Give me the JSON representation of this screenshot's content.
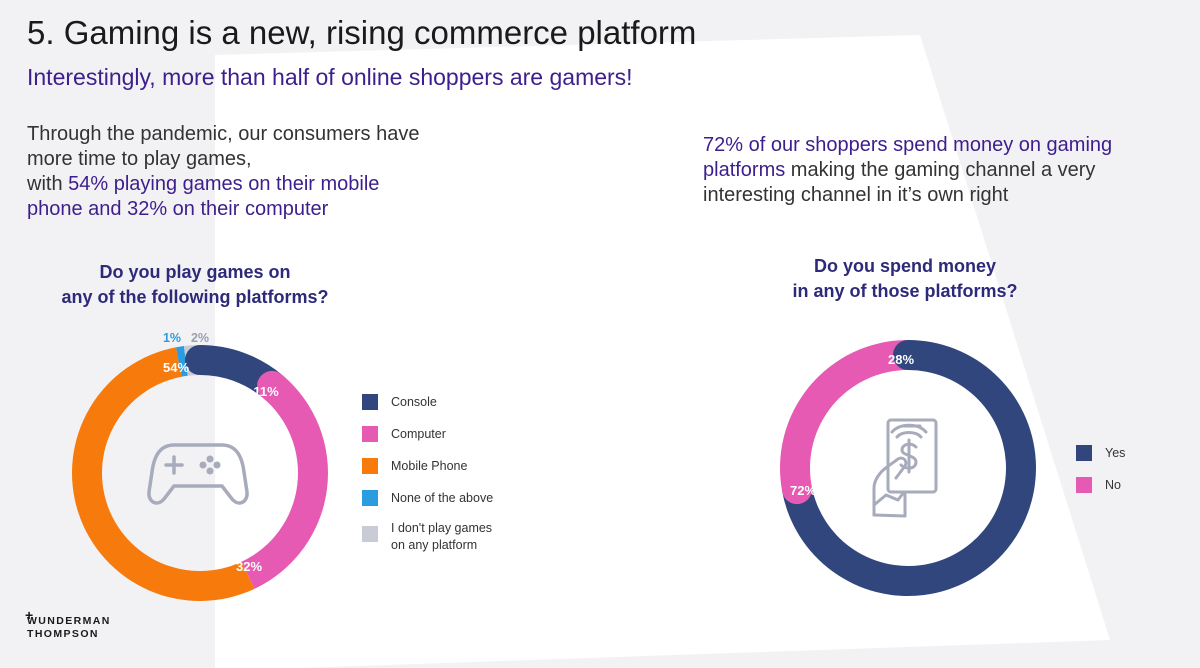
{
  "page": {
    "title": "5. Gaming is a new, rising commerce platform",
    "subtitle": "Interestingly, more than half of online shoppers are gamers!",
    "left_text": {
      "line1": "Through the pandemic, our consumers have",
      "line2": "more time to play games,",
      "line3_plain": "with ",
      "line3_highlight": "54% playing games on their mobile",
      "line4_highlight": "phone and 32% on their computer"
    },
    "right_text": {
      "line1_highlight": "72% of our shoppers spend money on gaming",
      "line2_highlight": "platforms",
      "line2_plain": " making the gaming channel a very",
      "line3": "interesting channel in it’s own right"
    },
    "logo": {
      "line1": "WUNDERMAN",
      "line2": "THOMPSON",
      "plus": "+"
    }
  },
  "colors": {
    "console": "#32467e",
    "computer": "#e65ab3",
    "mobile": "#f77a0d",
    "none": "#2b9ce0",
    "no_games": "#c9ccd6",
    "accent_text": "#3d1e8c",
    "icon_stroke": "#a7abbb"
  },
  "chart_data": [
    {
      "type": "pie",
      "donut": true,
      "title_line1": "Do you play games on",
      "title_line2": "any of the following platforms?",
      "center_icon": "gamepad-icon",
      "categories": [
        "Console",
        "Computer",
        "Mobile Phone",
        "None of the above",
        "I don't play games\non any platform"
      ],
      "values": [
        11,
        32,
        54,
        1,
        2
      ],
      "labels": [
        "11%",
        "32%",
        "54%",
        "1%",
        "2%"
      ],
      "legend_position": "right"
    },
    {
      "type": "pie",
      "donut": true,
      "title_line1": "Do you spend money",
      "title_line2": "in any of those platforms?",
      "center_icon": "phone-payment-icon",
      "categories": [
        "Yes",
        "No"
      ],
      "values": [
        72,
        28
      ],
      "labels": [
        "72%",
        "28%"
      ],
      "legend_position": "right"
    }
  ]
}
